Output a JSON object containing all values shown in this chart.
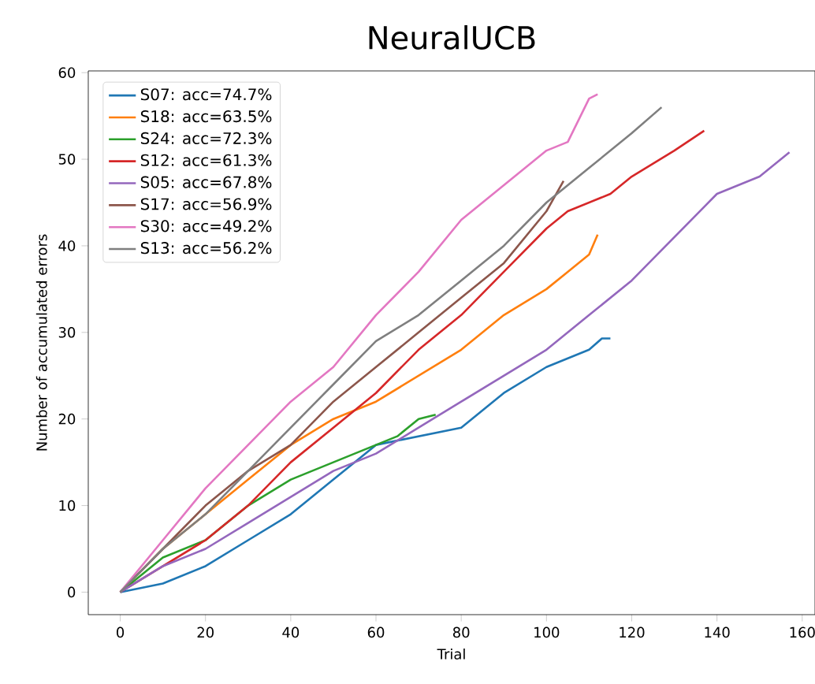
{
  "chart_data": {
    "type": "line",
    "title": "NeuralUCB",
    "xlabel": "Trial",
    "ylabel": "Number of accumulated errors",
    "xlim": [
      -7.5,
      163
    ],
    "ylim": [
      -2.6,
      60.2
    ],
    "xticks": [
      0,
      20,
      40,
      60,
      80,
      100,
      120,
      140,
      160
    ],
    "yticks": [
      0,
      10,
      20,
      30,
      40,
      50,
      60
    ],
    "legend": "top left",
    "grid": false,
    "series": [
      {
        "name": "S07: acc=74.7%",
        "color": "#1f77b4",
        "x": [
          0,
          10,
          20,
          30,
          40,
          50,
          60,
          70,
          80,
          90,
          100,
          110,
          113,
          115
        ],
        "values": [
          0,
          1,
          3,
          6,
          9,
          13,
          17,
          18,
          19,
          23,
          26,
          28,
          29.3,
          29.3
        ]
      },
      {
        "name": "S18: acc=63.5%",
        "color": "#ff7f0e",
        "x": [
          0,
          10,
          20,
          30,
          40,
          50,
          60,
          70,
          80,
          90,
          100,
          105,
          110,
          112
        ],
        "values": [
          0,
          5,
          9,
          13,
          17,
          20,
          22,
          25,
          28,
          32,
          35,
          37,
          39,
          41.3
        ]
      },
      {
        "name": "S24: acc=72.3%",
        "color": "#2ca02c",
        "x": [
          0,
          10,
          20,
          30,
          40,
          50,
          60,
          65,
          70,
          74
        ],
        "values": [
          0,
          4,
          6,
          10,
          13,
          15,
          17,
          18,
          20,
          20.5
        ]
      },
      {
        "name": "S12: acc=61.3%",
        "color": "#d62728",
        "x": [
          0,
          10,
          20,
          30,
          40,
          50,
          60,
          70,
          80,
          90,
          100,
          105,
          115,
          120,
          130,
          137
        ],
        "values": [
          0,
          3,
          6,
          10,
          15,
          19,
          23,
          28,
          32,
          37,
          42,
          44,
          46,
          48,
          51,
          53.3
        ]
      },
      {
        "name": "S05: acc=67.8%",
        "color": "#9467bd",
        "x": [
          0,
          10,
          20,
          30,
          40,
          50,
          60,
          70,
          80,
          90,
          100,
          110,
          120,
          130,
          140,
          150,
          157
        ],
        "values": [
          0,
          3,
          5,
          8,
          11,
          14,
          16,
          19,
          22,
          25,
          28,
          32,
          36,
          41,
          46,
          48,
          50.8
        ]
      },
      {
        "name": "S17: acc=56.9%",
        "color": "#8c564b",
        "x": [
          0,
          10,
          20,
          30,
          40,
          50,
          60,
          70,
          80,
          90,
          100,
          104
        ],
        "values": [
          0,
          5,
          10,
          14,
          17,
          22,
          26,
          30,
          34,
          38,
          44,
          47.5
        ]
      },
      {
        "name": "S30: acc=49.2%",
        "color": "#e377c2",
        "x": [
          0,
          10,
          20,
          30,
          40,
          50,
          60,
          70,
          80,
          90,
          100,
          105,
          110,
          112
        ],
        "values": [
          0,
          6,
          12,
          17,
          22,
          26,
          32,
          37,
          43,
          47,
          51,
          52,
          57,
          57.5
        ]
      },
      {
        "name": "S13: acc=56.2%",
        "color": "#7f7f7f",
        "x": [
          0,
          10,
          20,
          30,
          40,
          50,
          60,
          70,
          80,
          90,
          100,
          110,
          120,
          127
        ],
        "values": [
          0,
          5,
          9,
          14,
          19,
          24,
          29,
          32,
          36,
          40,
          45,
          49,
          53,
          56
        ]
      }
    ]
  }
}
